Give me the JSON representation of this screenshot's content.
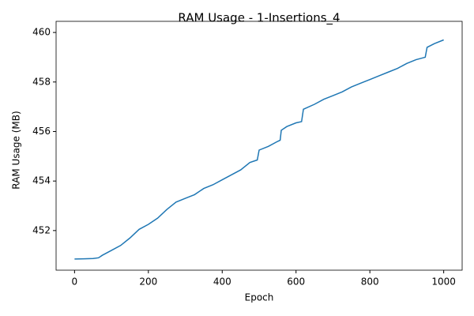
{
  "chart_data": {
    "type": "line",
    "title": "RAM Usage - 1-Insertions_4",
    "x_label": "Epoch",
    "y_label": "RAM Usage (MB)",
    "x": [
      0,
      25,
      50,
      65,
      75,
      100,
      125,
      150,
      175,
      200,
      225,
      250,
      275,
      300,
      325,
      350,
      375,
      400,
      425,
      450,
      475,
      495,
      500,
      525,
      550,
      557,
      560,
      575,
      600,
      615,
      620,
      650,
      675,
      700,
      725,
      750,
      775,
      800,
      825,
      850,
      875,
      900,
      925,
      950,
      955,
      975,
      1000
    ],
    "series": [
      {
        "name": "RAM Usage",
        "color": "#1f77b4",
        "values": [
          450.85,
          450.86,
          450.87,
          450.9,
          451.0,
          451.2,
          451.4,
          451.7,
          452.05,
          452.25,
          452.5,
          452.85,
          453.15,
          453.3,
          453.45,
          453.7,
          453.85,
          454.05,
          454.25,
          454.45,
          454.75,
          454.85,
          455.25,
          455.4,
          455.6,
          455.65,
          456.05,
          456.2,
          456.35,
          456.4,
          456.9,
          457.1,
          457.3,
          457.45,
          457.6,
          457.8,
          457.95,
          458.1,
          458.25,
          458.4,
          458.55,
          458.75,
          458.9,
          459.0,
          459.4,
          459.55,
          459.7
        ]
      }
    ],
    "xlim": [
      -50,
      1050
    ],
    "ylim": [
      450.4,
      460.45
    ],
    "xticks": [
      0,
      200,
      400,
      600,
      800,
      1000
    ],
    "yticks": [
      452,
      454,
      456,
      458,
      460
    ]
  }
}
